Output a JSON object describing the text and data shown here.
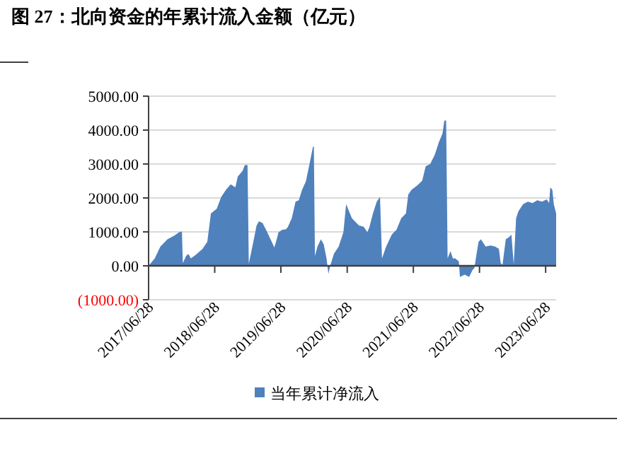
{
  "chart_data": {
    "type": "area",
    "title": "图 27：北向资金的年累计流入金额（亿元）",
    "x": [
      "2017-06-28",
      "2017-08-01",
      "2017-09-01",
      "2017-10-10",
      "2017-11-17",
      "2017-12-13",
      "2017-12-29",
      "2018-01-03",
      "2018-01-21",
      "2018-02-03",
      "2018-02-16",
      "2018-03-14",
      "2018-04-22",
      "2018-05-18",
      "2018-06-07",
      "2018-07-09",
      "2018-08-03",
      "2018-08-29",
      "2018-09-24",
      "2018-10-20",
      "2018-11-02",
      "2018-11-28",
      "2018-12-11",
      "2018-12-26",
      "2019-01-02",
      "2019-01-27",
      "2019-02-14",
      "2019-02-27",
      "2019-03-19",
      "2019-04-07",
      "2019-05-02",
      "2019-05-23",
      "2019-06-05",
      "2019-06-15",
      "2019-07-06",
      "2019-07-27",
      "2019-08-06",
      "2019-08-27",
      "2019-09-17",
      "2019-10-05",
      "2019-10-23",
      "2019-11-13",
      "2019-12-03",
      "2019-12-22",
      "2019-12-27",
      "2020-01-02",
      "2020-01-16",
      "2020-02-04",
      "2020-02-19",
      "2020-03-06",
      "2020-03-16",
      "2020-03-26",
      "2020-04-16",
      "2020-05-12",
      "2020-06-07",
      "2020-06-22",
      "2020-07-24",
      "2020-08-06",
      "2020-09-01",
      "2020-09-27",
      "2020-10-17",
      "2020-10-28",
      "2020-11-17",
      "2020-12-08",
      "2020-12-26",
      "2021-01-06",
      "2021-01-29",
      "2021-03-01",
      "2021-03-27",
      "2021-04-22",
      "2021-05-18",
      "2021-05-31",
      "2021-06-18",
      "2021-07-22",
      "2021-08-16",
      "2021-09-04",
      "2021-09-29",
      "2021-10-25",
      "2021-11-15",
      "2021-12-06",
      "2021-12-16",
      "2021-12-26",
      "2022-01-03",
      "2022-01-19",
      "2022-02-01",
      "2022-02-14",
      "2022-03-06",
      "2022-03-12",
      "2022-04-07",
      "2022-05-02",
      "2022-05-20",
      "2022-05-31",
      "2022-06-10",
      "2022-06-23",
      "2022-07-06",
      "2022-08-01",
      "2022-08-27",
      "2022-09-22",
      "2022-10-13",
      "2022-10-23",
      "2022-11-02",
      "2022-11-20",
      "2022-12-09",
      "2022-12-21",
      "2023-01-03",
      "2023-01-16",
      "2023-01-29",
      "2023-02-24",
      "2023-03-22",
      "2023-04-17",
      "2023-05-13",
      "2023-06-08",
      "2023-07-04",
      "2023-07-17",
      "2023-07-24",
      "2023-08-04",
      "2023-08-12",
      "2023-08-25"
    ],
    "series": [
      {
        "name": "当年累计净流入",
        "color": "#4f81bd",
        "values": [
          0,
          220,
          570,
          780,
          890,
          990,
          1010,
          80,
          290,
          350,
          220,
          320,
          500,
          710,
          1540,
          1680,
          2030,
          2240,
          2400,
          2310,
          2630,
          2790,
          2970,
          2970,
          60,
          710,
          1190,
          1310,
          1260,
          1060,
          780,
          540,
          780,
          990,
          1060,
          1080,
          1150,
          1400,
          1890,
          1930,
          2240,
          2490,
          3000,
          3510,
          3510,
          290,
          570,
          780,
          640,
          220,
          -240,
          0,
          360,
          570,
          990,
          1820,
          1400,
          1330,
          1190,
          1150,
          990,
          1130,
          1540,
          1890,
          2030,
          220,
          570,
          920,
          1060,
          1400,
          1540,
          2100,
          2240,
          2380,
          2510,
          2930,
          3000,
          3280,
          3630,
          3900,
          4280,
          4280,
          220,
          430,
          220,
          220,
          130,
          -330,
          -260,
          -330,
          -130,
          -60,
          290,
          710,
          780,
          570,
          600,
          570,
          500,
          80,
          30,
          780,
          850,
          920,
          40,
          1400,
          1610,
          1820,
          1890,
          1850,
          1930,
          1890,
          1960,
          1850,
          2310,
          2240,
          1820,
          1540
        ]
      }
    ],
    "xlim": [
      "2017-06-28",
      "2023-08-25"
    ],
    "xticks": [
      {
        "value": "2017-06-28",
        "label": "2017/06/28"
      },
      {
        "value": "2018-06-28",
        "label": "2018/06/28"
      },
      {
        "value": "2019-06-28",
        "label": "2019/06/28"
      },
      {
        "value": "2020-06-28",
        "label": "2020/06/28"
      },
      {
        "value": "2021-06-28",
        "label": "2021/06/28"
      },
      {
        "value": "2022-06-28",
        "label": "2022/06/28"
      },
      {
        "value": "2023-06-28",
        "label": "2023/06/28"
      }
    ],
    "ylim": [
      -1000,
      5000
    ],
    "yticks": [
      {
        "value": -1000,
        "label": "(1000.00)"
      },
      {
        "value": 0,
        "label": "0.00"
      },
      {
        "value": 1000,
        "label": "1000.00"
      },
      {
        "value": 2000,
        "label": "2000.00"
      },
      {
        "value": 3000,
        "label": "3000.00"
      },
      {
        "value": 4000,
        "label": "4000.00"
      },
      {
        "value": 5000,
        "label": "5000.00"
      }
    ],
    "grid": "y",
    "legend": "bottom"
  }
}
